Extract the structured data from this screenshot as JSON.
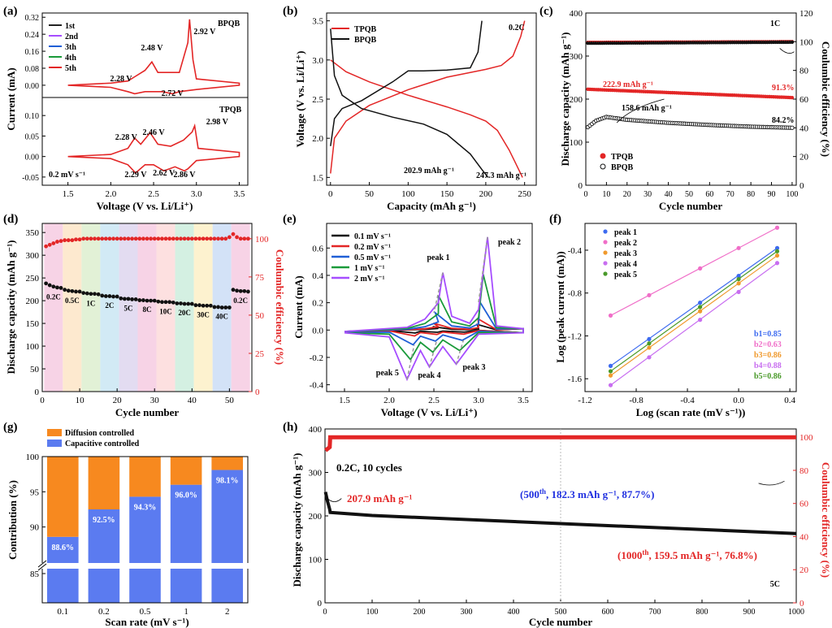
{
  "chart_data": [
    {
      "panel": "(a)",
      "type": "line",
      "xlabel": "Voltage (V vs. Li/Li⁺)",
      "ylabel": "Current (mA)",
      "xlim": [
        1.2,
        3.6
      ],
      "xticks": [
        "1.5",
        "2.0",
        "2.5",
        "3.0",
        "3.5"
      ],
      "top": {
        "label": "BPQB",
        "ylim": [
          -0.05,
          0.34
        ],
        "yticks": [
          "0.00",
          "0.08",
          "0.16",
          "0.24",
          "0.32"
        ],
        "legend": [
          "1st",
          "2nd",
          "3th",
          "4th",
          "5th"
        ],
        "legend_colors": [
          "#222222",
          "#a64dff",
          "#1f5fd6",
          "#1a9a3a",
          "#e32626"
        ],
        "annotations": [
          "2.28 V",
          "2.48 V",
          "2.92 V",
          "2.72 V"
        ],
        "series": [
          {
            "name": "5th",
            "x": [
              1.5,
              2.0,
              2.2,
              2.28,
              2.4,
              2.48,
              2.55,
              2.8,
              2.9,
              2.92,
              2.96,
              3.0,
              3.5,
              3.5,
              3.0,
              2.8,
              2.72,
              2.6,
              2.4,
              2.28,
              2.2,
              2.0,
              1.5
            ],
            "y": [
              0.0,
              0.01,
              0.02,
              0.04,
              0.07,
              0.11,
              0.06,
              0.06,
              0.2,
              0.31,
              0.12,
              0.03,
              0.01,
              0.0,
              -0.02,
              -0.03,
              -0.04,
              -0.03,
              -0.03,
              -0.04,
              -0.03,
              -0.01,
              0.0
            ]
          }
        ]
      },
      "bottom": {
        "label": "TPQB",
        "ylim": [
          -0.07,
          0.14
        ],
        "yticks": [
          "-0.05",
          "0.00",
          "0.05",
          "0.10"
        ],
        "annotations": [
          "2.28 V",
          "2.46 V",
          "2.98 V",
          "2.29 V",
          "2.62 V",
          "2.86 V",
          "0.2  mV s⁻¹"
        ],
        "series": [
          {
            "name": "5th",
            "x": [
              1.5,
              2.0,
              2.2,
              2.28,
              2.35,
              2.46,
              2.55,
              2.7,
              2.85,
              2.95,
              2.98,
              3.02,
              3.5,
              3.5,
              3.0,
              2.9,
              2.86,
              2.75,
              2.62,
              2.5,
              2.4,
              2.29,
              2.2,
              2.0,
              1.5
            ],
            "y": [
              0.0,
              0.005,
              0.02,
              0.045,
              0.03,
              0.058,
              0.03,
              0.025,
              0.04,
              0.06,
              0.075,
              0.02,
              0.01,
              0.0,
              -0.01,
              -0.03,
              -0.035,
              -0.025,
              -0.035,
              -0.02,
              -0.02,
              -0.04,
              -0.02,
              -0.005,
              0.0
            ]
          }
        ]
      }
    },
    {
      "panel": "(b)",
      "type": "line",
      "xlabel": "Capacity (mAh g⁻¹)",
      "ylabel": "Voltage (V vs. Li/Li⁺)",
      "xlim": [
        -5,
        265
      ],
      "ylim": [
        1.4,
        3.6
      ],
      "xticks": [
        "0",
        "50",
        "100",
        "150",
        "200",
        "250"
      ],
      "yticks": [
        "1.5",
        "2.0",
        "2.5",
        "3.0",
        "3.5"
      ],
      "legend": [
        "TPQB",
        "BPQB"
      ],
      "colors": [
        "#e32626",
        "#111111"
      ],
      "annotations": [
        "0.2C",
        "202.9 mAh g⁻¹",
        "247.3 mAh g⁻¹"
      ],
      "series": [
        {
          "name": "TPQB discharge",
          "x": [
            0,
            20,
            50,
            100,
            150,
            180,
            200,
            215,
            230,
            240,
            247.3
          ],
          "y": [
            3.0,
            2.85,
            2.72,
            2.55,
            2.4,
            2.3,
            2.22,
            2.1,
            1.85,
            1.65,
            1.5
          ]
        },
        {
          "name": "TPQB charge",
          "x": [
            0,
            5,
            20,
            50,
            100,
            150,
            200,
            220,
            235,
            245,
            250
          ],
          "y": [
            1.55,
            2.0,
            2.22,
            2.42,
            2.62,
            2.78,
            2.88,
            2.93,
            3.05,
            3.3,
            3.5
          ]
        },
        {
          "name": "BPQB discharge",
          "x": [
            0,
            5,
            15,
            40,
            80,
            120,
            150,
            180,
            195,
            202.9
          ],
          "y": [
            3.4,
            2.8,
            2.55,
            2.38,
            2.27,
            2.18,
            2.05,
            1.8,
            1.6,
            1.5
          ]
        },
        {
          "name": "BPQB charge",
          "x": [
            0,
            5,
            15,
            40,
            80,
            100,
            120,
            150,
            180,
            190,
            195
          ],
          "y": [
            1.9,
            2.25,
            2.38,
            2.48,
            2.72,
            2.86,
            2.86,
            2.87,
            2.9,
            3.1,
            3.5
          ]
        }
      ]
    },
    {
      "panel": "(c)",
      "type": "scatter",
      "xlabel": "Cycle number",
      "ylabel": "Discharge capacity (mAh g⁻¹)",
      "y2label": "Coulumbic efficiency (%)",
      "xlim": [
        0,
        102
      ],
      "ylim": [
        0,
        400
      ],
      "y2lim": [
        0,
        120
      ],
      "xticks": [
        "0",
        "10",
        "20",
        "30",
        "40",
        "50",
        "60",
        "70",
        "80",
        "90",
        "100"
      ],
      "yticks": [
        "0",
        "100",
        "200",
        "300",
        "400"
      ],
      "y2ticks": [
        "0",
        "20",
        "40",
        "60",
        "80",
        "100",
        "120"
      ],
      "legend": [
        "TPQB",
        "BPQB"
      ],
      "colors": [
        "#e32626",
        "#111111"
      ],
      "annotations": [
        "1C",
        "222.9 mAh g⁻¹",
        "91.3%",
        "158.6 mAh g⁻¹",
        "84.2%"
      ],
      "series": [
        {
          "name": "TPQB",
          "x": [
            1,
            100
          ],
          "y": [
            222.9,
            203.5
          ]
        },
        {
          "name": "BPQB",
          "x": [
            1,
            5,
            10,
            20,
            40,
            60,
            80,
            100
          ],
          "y": [
            135,
            150,
            158.6,
            152,
            145,
            140,
            136,
            133.5
          ]
        },
        {
          "name": "TPQB CE",
          "x": [
            1,
            100
          ],
          "y": [
            99.5,
            100
          ]
        },
        {
          "name": "BPQB CE",
          "x": [
            1,
            100
          ],
          "y": [
            99.3,
            100
          ]
        }
      ]
    },
    {
      "panel": "(d)",
      "type": "scatter",
      "xlabel": "Cycle number",
      "ylabel": "Discharge capacity (mAh g⁻¹)",
      "y2label": "Coulumbic efficiency (%)",
      "xlim": [
        0,
        56
      ],
      "ylim": [
        0,
        370
      ],
      "y2lim": [
        0,
        110
      ],
      "xticks": [
        "0",
        "10",
        "20",
        "30",
        "40",
        "50"
      ],
      "yticks": [
        "0",
        "50",
        "100",
        "150",
        "200",
        "250",
        "300",
        "350"
      ],
      "y2ticks": [
        "0",
        "25",
        "50",
        "75",
        "100"
      ],
      "rates": [
        "0.2C",
        "0.5C",
        "1C",
        "2C",
        "5C",
        "8C",
        "10C",
        "20C",
        "30C",
        "40C",
        "0.2C"
      ],
      "capacity": [
        [
          238,
          234,
          231,
          229,
          228
        ],
        [
          224,
          222,
          221,
          220,
          220
        ],
        [
          217,
          216,
          215,
          215,
          214
        ],
        [
          211,
          210,
          210,
          209,
          209
        ],
        [
          205,
          204,
          204,
          203,
          203
        ],
        [
          201,
          201,
          200,
          200,
          200
        ],
        [
          198,
          197,
          197,
          197,
          196
        ],
        [
          194,
          194,
          193,
          193,
          193
        ],
        [
          190,
          190,
          189,
          189,
          189
        ],
        [
          186,
          186,
          185,
          185,
          185
        ],
        [
          224,
          222,
          221,
          221,
          220
        ]
      ],
      "ce": [
        [
          95,
          96,
          97,
          98,
          98.5
        ],
        [
          99,
          99,
          99,
          99.5,
          99.5
        ],
        [
          100,
          100,
          100,
          100,
          100
        ],
        [
          100,
          100,
          100,
          100,
          100
        ],
        [
          100,
          100,
          100,
          100,
          100
        ],
        [
          100,
          100,
          100,
          100,
          100
        ],
        [
          100,
          100,
          100,
          100,
          100
        ],
        [
          100,
          100,
          100,
          100,
          100
        ],
        [
          100,
          100,
          100,
          100,
          100
        ],
        [
          100,
          100,
          100,
          100,
          101
        ],
        [
          103,
          101,
          100,
          100,
          100
        ]
      ],
      "band_colors": [
        "#f7d3e6",
        "#fde9cf",
        "#e2f1d6",
        "#d2eaf5",
        "#e3dcf1",
        "#f7d3e6",
        "#fde0e0",
        "#d4f0e2",
        "#fdf2cf",
        "#d3e2f7",
        "#f7d3e6"
      ]
    },
    {
      "panel": "(e)",
      "type": "line",
      "xlabel": "Voltage (V vs. Li/Li⁺)",
      "ylabel": "Current (mA)",
      "xlim": [
        1.3,
        3.6
      ],
      "ylim": [
        -0.45,
        0.78
      ],
      "xticks": [
        "1.5",
        "2.0",
        "2.5",
        "3.0",
        "3.5"
      ],
      "yticks": [
        "-0.4",
        "-0.2",
        "0.0",
        "0.2",
        "0.4",
        "0.6"
      ],
      "legend": [
        "0.1 mV s⁻¹",
        "0.2 mV s⁻¹",
        "0.5 mV s⁻¹",
        "1 mV s⁻¹",
        "2 mV s⁻¹"
      ],
      "colors": [
        "#111111",
        "#e32626",
        "#1f5fd6",
        "#1a9a3a",
        "#a64dff"
      ],
      "annotations": [
        "peak 1",
        "peak 2",
        "peak 3",
        "peak 4",
        "peak 5"
      ],
      "peaks_2mV": {
        "peak 1": [
          2.6,
          0.42
        ],
        "peak 2": [
          3.1,
          0.68
        ],
        "peak 3": [
          2.75,
          -0.25
        ],
        "peak 4": [
          2.45,
          -0.27
        ],
        "peak 5": [
          2.2,
          -0.36
        ]
      },
      "scale": [
        0.06,
        0.12,
        0.3,
        0.6,
        1.0
      ]
    },
    {
      "panel": "(f)",
      "type": "scatter",
      "xlabel": "Log (scan rate (mV s⁻¹))",
      "ylabel": "Log (peak current (mA))",
      "xlim": [
        -1.2,
        0.45
      ],
      "ylim": [
        -1.72,
        -0.15
      ],
      "xticks": [
        "-1.2",
        "-0.8",
        "-0.4",
        "0.0",
        "0.4"
      ],
      "yticks": [
        "-1.6",
        "-1.2",
        "-0.8",
        "-0.4"
      ],
      "x": [
        -1.0,
        -0.699,
        -0.301,
        0.0,
        0.301
      ],
      "series": [
        {
          "name": "peak 1",
          "color": "#3d6bf0",
          "b_label": "b1=0.85",
          "y": [
            -1.48,
            -1.23,
            -0.89,
            -0.64,
            -0.38
          ]
        },
        {
          "name": "peak 2",
          "color": "#f06ec8",
          "b_label": "b2=0.63",
          "y": [
            -1.01,
            -0.82,
            -0.57,
            -0.38,
            -0.19
          ]
        },
        {
          "name": "peak 3",
          "color": "#f09a2e",
          "b_label": "b3=0.86",
          "y": [
            -1.57,
            -1.31,
            -0.97,
            -0.71,
            -0.45
          ]
        },
        {
          "name": "peak 4",
          "color": "#c86ef0",
          "b_label": "b4=0.88",
          "y": [
            -1.66,
            -1.4,
            -1.05,
            -0.79,
            -0.52
          ]
        },
        {
          "name": "peak 5",
          "color": "#4a9a2a",
          "b_label": "b5=0.86",
          "y": [
            -1.53,
            -1.27,
            -0.93,
            -0.67,
            -0.41
          ]
        }
      ]
    },
    {
      "panel": "(g)",
      "type": "bar",
      "xlabel": "Scan rate (mV s⁻¹)",
      "ylabel": "Contribution (%)",
      "categories": [
        "0.1",
        "0.2",
        "0.5",
        "1",
        "2"
      ],
      "series": [
        {
          "name": "Capacitive controlled",
          "color": "#5b7bf0",
          "values": [
            88.6,
            92.5,
            94.3,
            96.0,
            98.1
          ]
        },
        {
          "name": "Diffusion controlled",
          "color": "#f7891f",
          "values": [
            11.4,
            7.5,
            5.7,
            4.0,
            1.9
          ]
        }
      ],
      "value_labels": [
        "88.6%",
        "92.5%",
        "94.3%",
        "96.0%",
        "98.1%"
      ],
      "ylim": [
        85,
        100
      ],
      "yticks": [
        "85",
        "90",
        "95",
        "100"
      ],
      "axis_break": true
    },
    {
      "panel": "(h)",
      "type": "scatter",
      "xlabel": "Cycle number",
      "ylabel": "Discharge capacity (mAh g⁻¹)",
      "y2label": "Coulumbic efficiency (%)",
      "xlim": [
        0,
        1000
      ],
      "ylim": [
        0,
        400
      ],
      "y2lim": [
        0,
        105
      ],
      "xticks": [
        "0",
        "100",
        "200",
        "300",
        "400",
        "500",
        "600",
        "700",
        "800",
        "900",
        "1000"
      ],
      "yticks": [
        "0",
        "100",
        "200",
        "300",
        "400"
      ],
      "y2ticks": [
        "0",
        "20",
        "40",
        "60",
        "80",
        "100"
      ],
      "annotations": [
        "0.2C, 10 cycles",
        "207.9 mAh g⁻¹",
        "5C"
      ],
      "annotation_500": {
        "prefix": "(500",
        "sup": "th",
        "suffix": ", 182.3 mAh g⁻¹, 87.7%)"
      },
      "annotation_1000": {
        "prefix": "(1000",
        "sup": "th",
        "suffix": ", 159.5 mAh g⁻¹, 76.8%)"
      },
      "series": [
        {
          "name": "Capacity",
          "x": [
            1,
            5,
            10,
            11,
            100,
            500,
            1000
          ],
          "y": [
            255,
            235,
            215,
            207.9,
            201,
            182.3,
            159.5
          ]
        },
        {
          "name": "CE",
          "x": [
            1,
            10,
            11,
            1000
          ],
          "y": [
            92,
            94,
            100,
            100
          ]
        }
      ]
    }
  ]
}
